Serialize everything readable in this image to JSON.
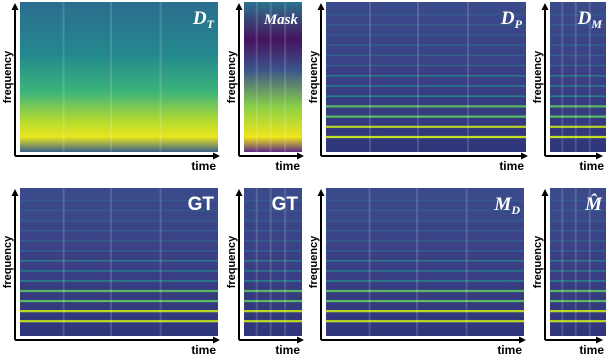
{
  "panels": [
    {
      "label": "D",
      "subscript": "T",
      "y_label": "frequency",
      "x_label": "time"
    },
    {
      "label": "Mask",
      "y_label": "frequency",
      "x_label": "time"
    },
    {
      "label": "D",
      "subscript": "P",
      "y_label": "frequency",
      "x_label": "time"
    },
    {
      "label": "D",
      "subscript": "M",
      "y_label": "frequency",
      "x_label": "time"
    },
    {
      "label": "GT",
      "y_label": "frequency",
      "x_label": "time"
    },
    {
      "label": "GT",
      "y_label": "frequency",
      "x_label": "time"
    },
    {
      "label": "M",
      "subscript": "D",
      "y_label": "frequency",
      "x_label": "time"
    },
    {
      "label": "M̂",
      "y_label": "frequency",
      "x_label": "time"
    }
  ]
}
